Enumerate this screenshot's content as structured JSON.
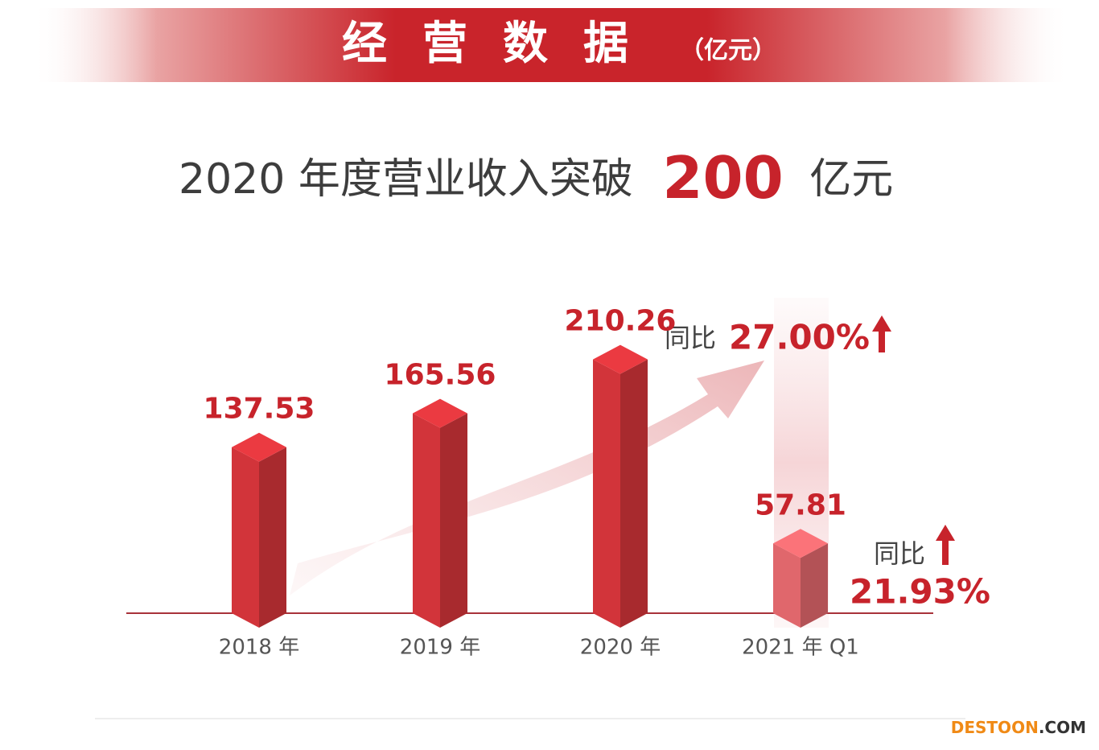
{
  "banner": {
    "title": "经营数据",
    "unit": "（亿元）"
  },
  "headline": {
    "before": "2020 年度营业收入突破",
    "highlight": "200",
    "after": "亿元"
  },
  "chart_data": {
    "type": "bar3d",
    "categories": [
      "2018 年",
      "2019 年",
      "2020 年",
      "2021 年 Q1"
    ],
    "values": [
      137.53,
      165.56,
      210.26,
      57.81
    ],
    "colors": [
      "#d2343a",
      "#d2343a",
      "#d2343a",
      "#e0676c"
    ],
    "annotations": [
      {
        "label": "同比",
        "value": "27.00%"
      },
      {
        "label": "同比",
        "value": "21.93%"
      }
    ]
  },
  "watermark": {
    "brand": "DESTOON",
    "suffix": ".COM"
  }
}
